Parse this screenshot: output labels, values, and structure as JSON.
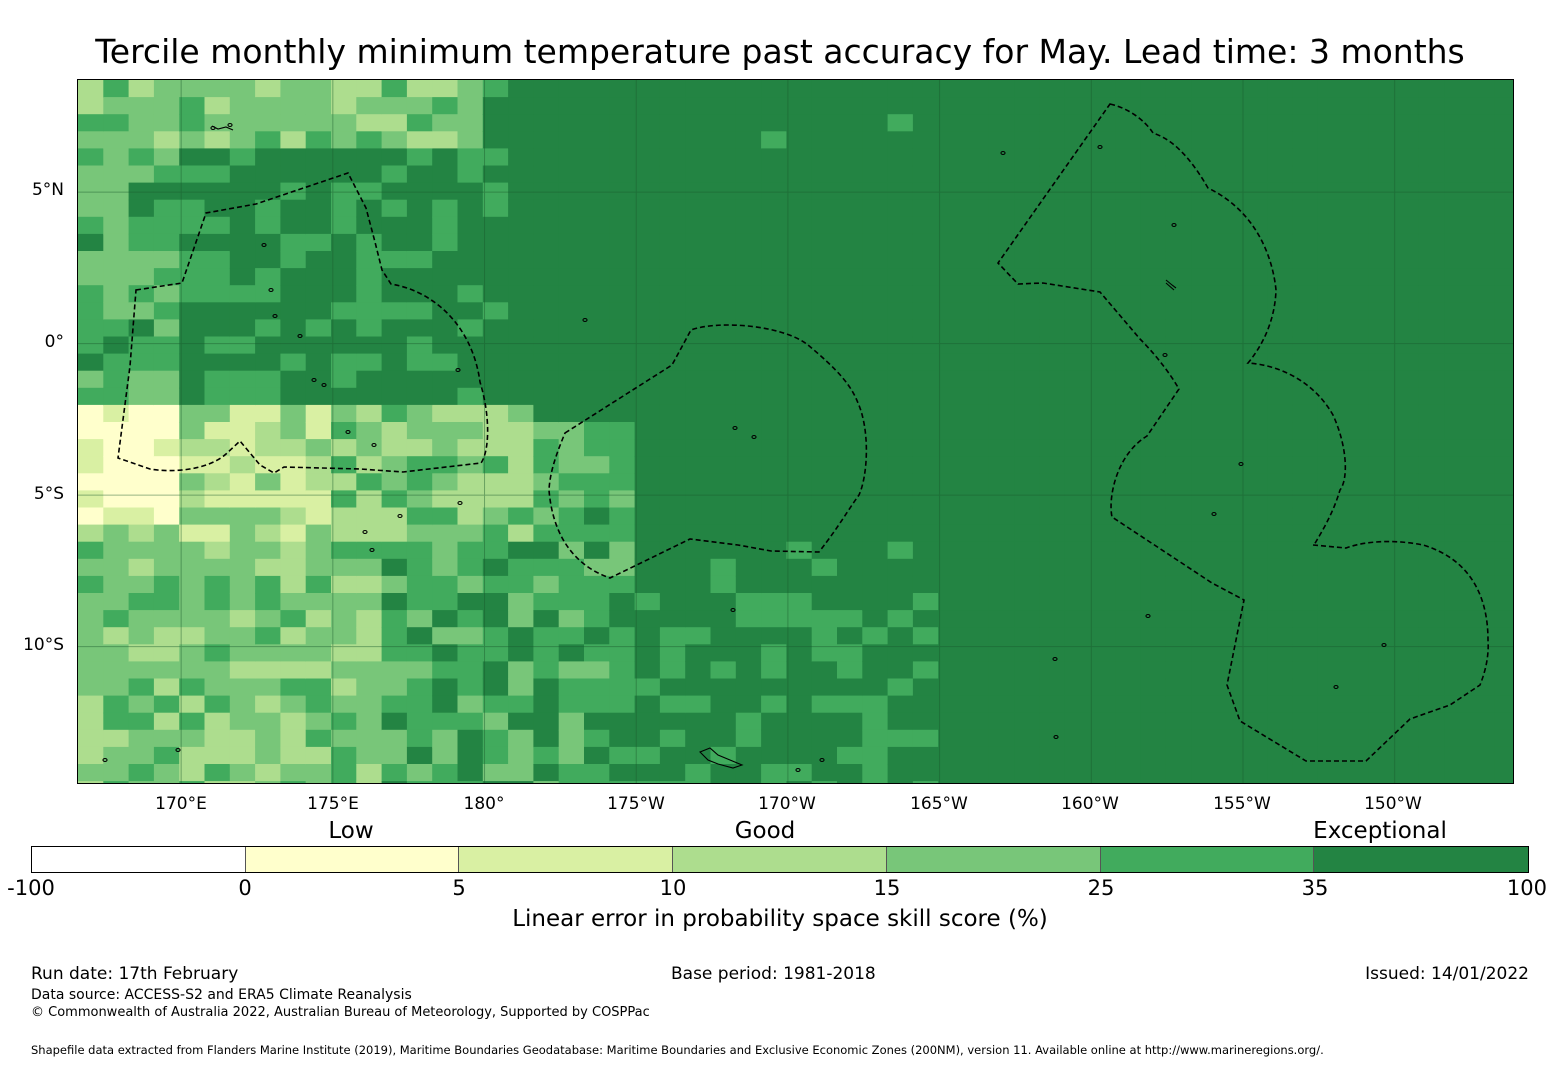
{
  "title": "Tercile monthly minimum temperature past accuracy for May. Lead time: 3 months",
  "map": {
    "lat_labels": [
      "5°N",
      "0°",
      "5°S",
      "10°S"
    ],
    "lon_labels": [
      "170°E",
      "175°E",
      "180°",
      "175°W",
      "170°W",
      "165°W",
      "160°W",
      "155°W",
      "150°W"
    ],
    "lon_range_deg_east": [
      166.6,
      213.9
    ],
    "lat_range": [
      -14.5,
      8.7
    ],
    "gridlines": true,
    "coastlines": true,
    "eez_boundaries": "dashed black"
  },
  "legend": {
    "category_labels": [
      "Low",
      "Good",
      "Exceptional"
    ],
    "ticks": [
      "-100",
      "0",
      "5",
      "10",
      "15",
      "25",
      "35",
      "100"
    ],
    "colors": [
      "#ffffff",
      "#ffffcc",
      "#d9f0a3",
      "#addd8e",
      "#78c679",
      "#41ab5d",
      "#238443"
    ],
    "label": "Linear error in probability space skill score (%)"
  },
  "footer": {
    "run_date": "Run date: 17th February",
    "base_period": "Base period: 1981-2018",
    "issued": "Issued: 14/01/2022",
    "data_source": "Data source: ACCESS-S2 and ERA5 Climate Reanalysis",
    "copyright": "© Commonwealth of Australia 2022, Australian Bureau of Meteorology, Supported by COSPPac",
    "shapefile": "Shapefile data extracted from Flanders Marine Institute (2019), Maritime Boundaries Geodatabase: Maritime Boundaries and Exclusive Economic Zones (200NM), version 11. Available online at http://www.marineregions.org/."
  }
}
